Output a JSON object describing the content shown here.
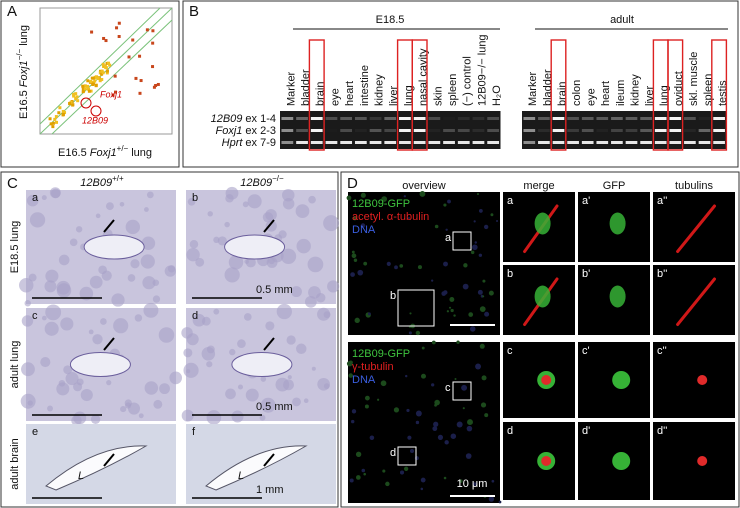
{
  "panel_a": {
    "letter": "A",
    "y_label": {
      "prefix": "E16.5",
      "gene": "Foxj1",
      "sup": "−/−",
      "suffix": "lung"
    },
    "x_label": {
      "prefix": "E16.5",
      "gene": "Foxj1",
      "sup": "+/−",
      "suffix": "lung"
    },
    "annotations": [
      "Foxj1",
      "12B09"
    ]
  },
  "panel_b": {
    "letter": "B",
    "groups": [
      {
        "title": "E18.5",
        "lanes": [
          "Marker",
          "bladder",
          "brain",
          "eye",
          "heart",
          "intestine",
          "kidney",
          "liver",
          "lung",
          "nasal cavity",
          "skin",
          "spleen",
          "(−) control",
          "12B09−/− lung",
          "H₂O"
        ]
      },
      {
        "title": "adult",
        "lanes": [
          "Marker",
          "bladder",
          "brain",
          "colon",
          "eye",
          "heart",
          "ileum",
          "kidney",
          "liver",
          "lung",
          "oviduct",
          "skl. muscle",
          "spleen",
          "testis"
        ]
      }
    ],
    "rows": [
      {
        "gene": "12B09",
        "suffix": "ex 1-4"
      },
      {
        "gene": "Foxj1",
        "suffix": "ex 2-3"
      },
      {
        "gene": "Hprt",
        "suffix": "ex 7-9"
      }
    ]
  },
  "panel_c": {
    "letter": "C",
    "columns": [
      {
        "gene": "12B09",
        "sup": "+/+"
      },
      {
        "gene": "12B09",
        "sup": "−/−"
      }
    ],
    "rows": [
      "E18.5 lung",
      "adult lung",
      "adult brain"
    ],
    "panels": [
      {
        "label": "a",
        "scale": null,
        "lumen": null
      },
      {
        "label": "b",
        "scale": "0.5 mm",
        "lumen": null
      },
      {
        "label": "c",
        "scale": null,
        "lumen": null
      },
      {
        "label": "d",
        "scale": "0.5 mm",
        "lumen": null
      },
      {
        "label": "e",
        "scale": null,
        "lumen": "L"
      },
      {
        "label": "f",
        "scale": "1 mm",
        "lumen": "L"
      }
    ]
  },
  "panel_d": {
    "letter": "D",
    "columns": [
      "overview",
      "merge",
      "GFP",
      "tubulins"
    ],
    "legends": [
      [
        "12B09-GFP",
        "acetyl. α-tubulin",
        "DNA"
      ],
      [
        "12B09-GFP",
        "γ-tubulin",
        "DNA"
      ]
    ],
    "scale": "10 μm",
    "boxes": [
      "a",
      "b",
      "c",
      "d"
    ],
    "rows": [
      [
        "a",
        "a'",
        "a''"
      ],
      [
        "b",
        "b'",
        "b''"
      ],
      [
        "c",
        "c'",
        "c''"
      ],
      [
        "d",
        "d'",
        "d''"
      ]
    ]
  }
}
